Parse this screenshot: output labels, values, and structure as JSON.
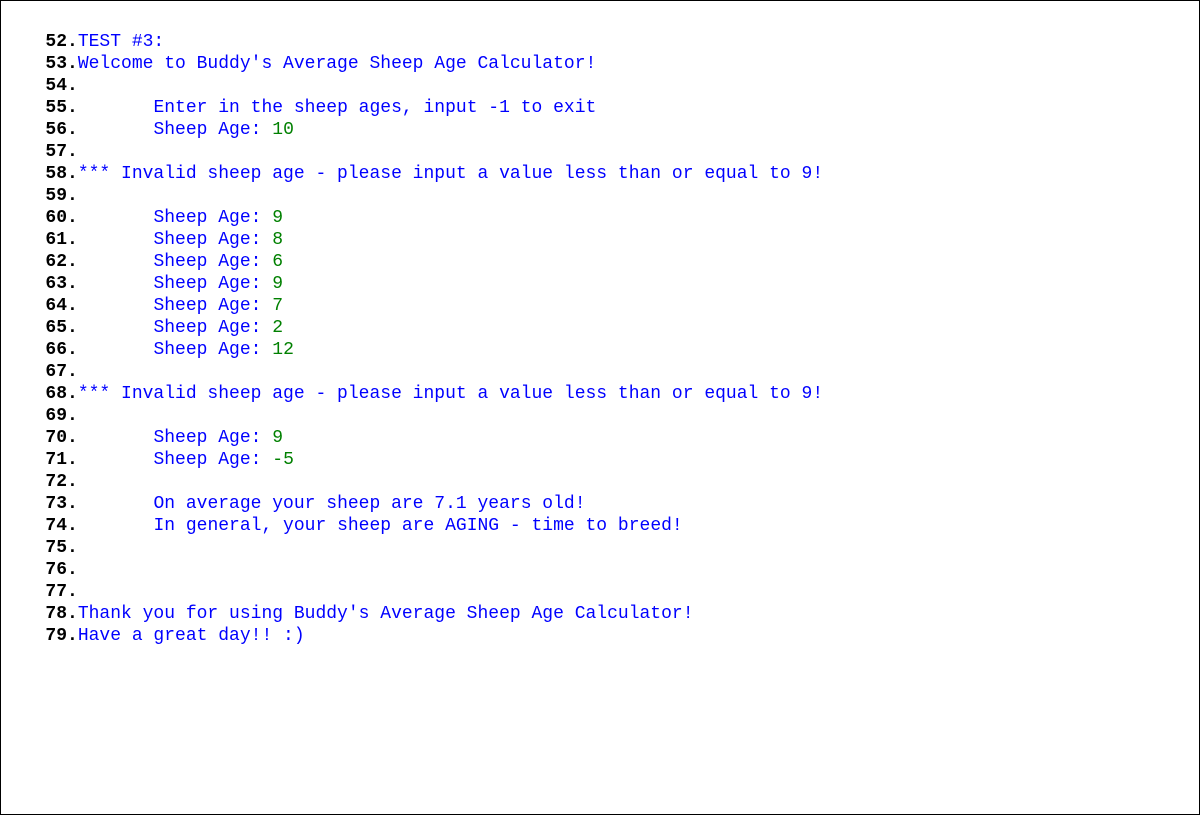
{
  "colors": {
    "lineNumber": "#000000",
    "blue": "#0000ff",
    "green": "#008000",
    "background": "#ffffff"
  },
  "lines": [
    {
      "num": "52",
      "indent": "",
      "segments": [
        {
          "text": "TEST #3:",
          "color": "blue"
        }
      ]
    },
    {
      "num": "53",
      "indent": "",
      "segments": [
        {
          "text": "Welcome to Buddy's Average Sheep Age Calculator!",
          "color": "blue"
        }
      ]
    },
    {
      "num": "54",
      "indent": "",
      "segments": []
    },
    {
      "num": "55",
      "indent": "       ",
      "segments": [
        {
          "text": "Enter in the sheep ages, input -1 to exit",
          "color": "blue"
        }
      ]
    },
    {
      "num": "56",
      "indent": "       ",
      "segments": [
        {
          "text": "Sheep Age: ",
          "color": "blue"
        },
        {
          "text": "10",
          "color": "green"
        }
      ]
    },
    {
      "num": "57",
      "indent": "",
      "segments": []
    },
    {
      "num": "58",
      "indent": "",
      "segments": [
        {
          "text": "*** Invalid sheep age - please input a value less than or equal to 9!",
          "color": "blue"
        }
      ]
    },
    {
      "num": "59",
      "indent": "",
      "segments": []
    },
    {
      "num": "60",
      "indent": "       ",
      "segments": [
        {
          "text": "Sheep Age: ",
          "color": "blue"
        },
        {
          "text": "9",
          "color": "green"
        }
      ]
    },
    {
      "num": "61",
      "indent": "       ",
      "segments": [
        {
          "text": "Sheep Age: ",
          "color": "blue"
        },
        {
          "text": "8",
          "color": "green"
        }
      ]
    },
    {
      "num": "62",
      "indent": "       ",
      "segments": [
        {
          "text": "Sheep Age: ",
          "color": "blue"
        },
        {
          "text": "6",
          "color": "green"
        }
      ]
    },
    {
      "num": "63",
      "indent": "       ",
      "segments": [
        {
          "text": "Sheep Age: ",
          "color": "blue"
        },
        {
          "text": "9",
          "color": "green"
        }
      ]
    },
    {
      "num": "64",
      "indent": "       ",
      "segments": [
        {
          "text": "Sheep Age: ",
          "color": "blue"
        },
        {
          "text": "7",
          "color": "green"
        }
      ]
    },
    {
      "num": "65",
      "indent": "       ",
      "segments": [
        {
          "text": "Sheep Age: ",
          "color": "blue"
        },
        {
          "text": "2",
          "color": "green"
        }
      ]
    },
    {
      "num": "66",
      "indent": "       ",
      "segments": [
        {
          "text": "Sheep Age: ",
          "color": "blue"
        },
        {
          "text": "12",
          "color": "green"
        }
      ]
    },
    {
      "num": "67",
      "indent": "",
      "segments": []
    },
    {
      "num": "68",
      "indent": "",
      "segments": [
        {
          "text": "*** Invalid sheep age - please input a value less than or equal to 9!",
          "color": "blue"
        }
      ]
    },
    {
      "num": "69",
      "indent": "",
      "segments": []
    },
    {
      "num": "70",
      "indent": "       ",
      "segments": [
        {
          "text": "Sheep Age: ",
          "color": "blue"
        },
        {
          "text": "9",
          "color": "green"
        }
      ]
    },
    {
      "num": "71",
      "indent": "       ",
      "segments": [
        {
          "text": "Sheep Age: ",
          "color": "blue"
        },
        {
          "text": "-5",
          "color": "green"
        }
      ]
    },
    {
      "num": "72",
      "indent": "",
      "segments": []
    },
    {
      "num": "73",
      "indent": "       ",
      "segments": [
        {
          "text": "On average your sheep are 7.1 years old!",
          "color": "blue"
        }
      ]
    },
    {
      "num": "74",
      "indent": "       ",
      "segments": [
        {
          "text": "In general, your sheep are AGING - time to breed!",
          "color": "blue"
        }
      ]
    },
    {
      "num": "75",
      "indent": "",
      "segments": []
    },
    {
      "num": "76",
      "indent": "",
      "segments": []
    },
    {
      "num": "77",
      "indent": "",
      "segments": []
    },
    {
      "num": "78",
      "indent": "",
      "segments": [
        {
          "text": "Thank you for using Buddy's Average Sheep Age Calculator!",
          "color": "blue"
        }
      ]
    },
    {
      "num": "79",
      "indent": "",
      "segments": [
        {
          "text": "Have a great day!! :)",
          "color": "blue"
        }
      ]
    }
  ]
}
